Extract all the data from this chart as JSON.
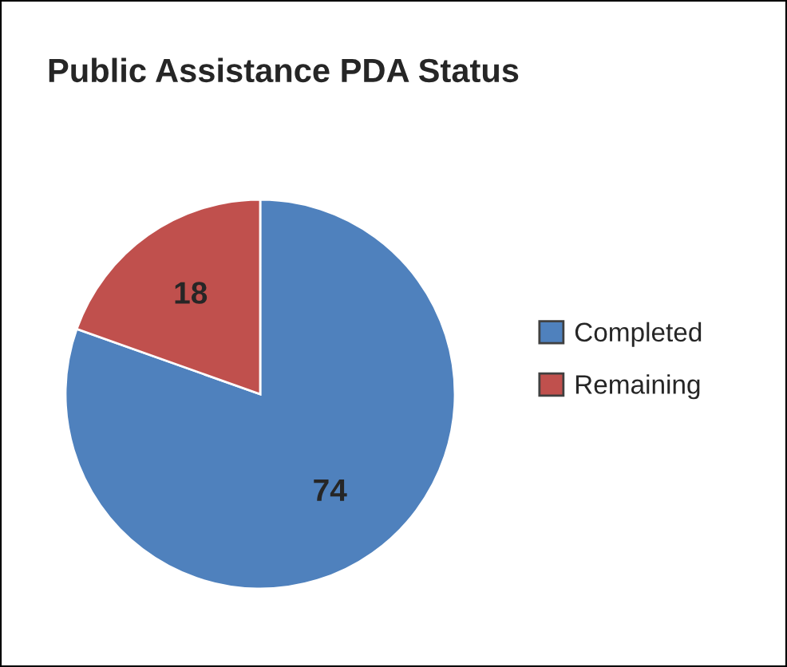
{
  "chart_data": {
    "type": "pie",
    "title": "Public Assistance PDA Status",
    "categories": [
      "Completed",
      "Remaining"
    ],
    "values": [
      74,
      18
    ],
    "colors": [
      "#4f81bd",
      "#c0504d"
    ],
    "data_labels": true,
    "legend": "right"
  }
}
